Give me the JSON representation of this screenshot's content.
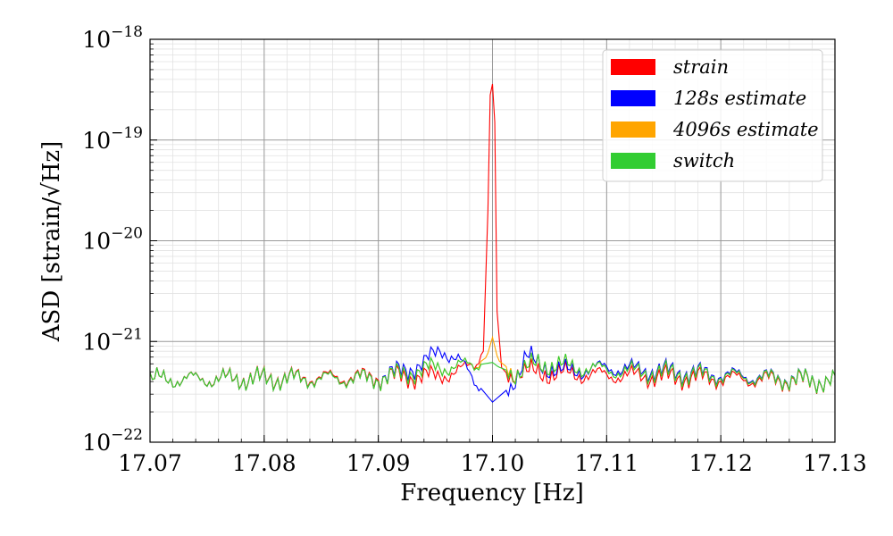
{
  "chart_data": {
    "type": "line",
    "title": "",
    "xlabel": "Frequency [Hz]",
    "ylabel": "ASD [strain/√Hz]",
    "xlim": [
      17.07,
      17.13
    ],
    "ylim": [
      1e-22,
      1e-18
    ],
    "yscale": "log",
    "grid": true,
    "legend_position": "top-right",
    "x_ticks": [
      "17.07",
      "17.08",
      "17.09",
      "17.10",
      "17.11",
      "17.12",
      "17.13"
    ],
    "y_ticks": [
      {
        "base": "10",
        "exp": "−22"
      },
      {
        "base": "10",
        "exp": "−21"
      },
      {
        "base": "10",
        "exp": "−20"
      },
      {
        "base": "10",
        "exp": "−19"
      },
      {
        "base": "10",
        "exp": "−18"
      }
    ],
    "series": [
      {
        "name": "strain",
        "color": "#ff0000",
        "x": [
          17.07,
          17.095,
          17.0975,
          17.0985,
          17.0992,
          17.0996,
          17.0998,
          17.1,
          17.1002,
          17.1004,
          17.1008,
          17.1015,
          17.102,
          17.105,
          17.13
        ],
        "y": [
          4.2e-22,
          4.5e-22,
          5.2e-22,
          6e-22,
          8e-22,
          2e-20,
          2.8e-19,
          3.6e-19,
          1.5e-19,
          2e-21,
          5.5e-22,
          4.5e-22,
          5e-22,
          4.8e-22,
          4e-22
        ]
      },
      {
        "name": "128s estimate",
        "color": "#0000ff",
        "x": [
          17.07,
          17.09,
          17.094,
          17.0955,
          17.097,
          17.0985,
          17.1,
          17.1015,
          17.103,
          17.104,
          17.106,
          17.11,
          17.13
        ],
        "y": [
          4.2e-22,
          4.3e-22,
          6e-22,
          8.5e-22,
          6.5e-22,
          4e-22,
          2.5e-22,
          3.5e-22,
          7e-22,
          6e-22,
          5e-22,
          5.5e-22,
          4e-22
        ]
      },
      {
        "name": "4096s estimate",
        "color": "#ffa500",
        "x": [
          17.07,
          17.09,
          17.095,
          17.0985,
          17.0995,
          17.1,
          17.1005,
          17.102,
          17.104,
          17.11,
          17.13
        ],
        "y": [
          4.2e-22,
          4.3e-22,
          5.5e-22,
          5.8e-22,
          7e-22,
          1.1e-21,
          6.5e-22,
          4.8e-22,
          6e-22,
          5.2e-22,
          4e-22
        ]
      },
      {
        "name": "switch",
        "color": "#32cd32",
        "x": [
          17.07,
          17.09,
          17.095,
          17.0985,
          17.1,
          17.1005,
          17.102,
          17.104,
          17.11,
          17.13
        ],
        "y": [
          4.2e-22,
          4.3e-22,
          5.5e-22,
          5.8e-22,
          6.2e-22,
          5.6e-22,
          4.8e-22,
          6e-22,
          5.2e-22,
          4e-22
        ]
      }
    ]
  }
}
